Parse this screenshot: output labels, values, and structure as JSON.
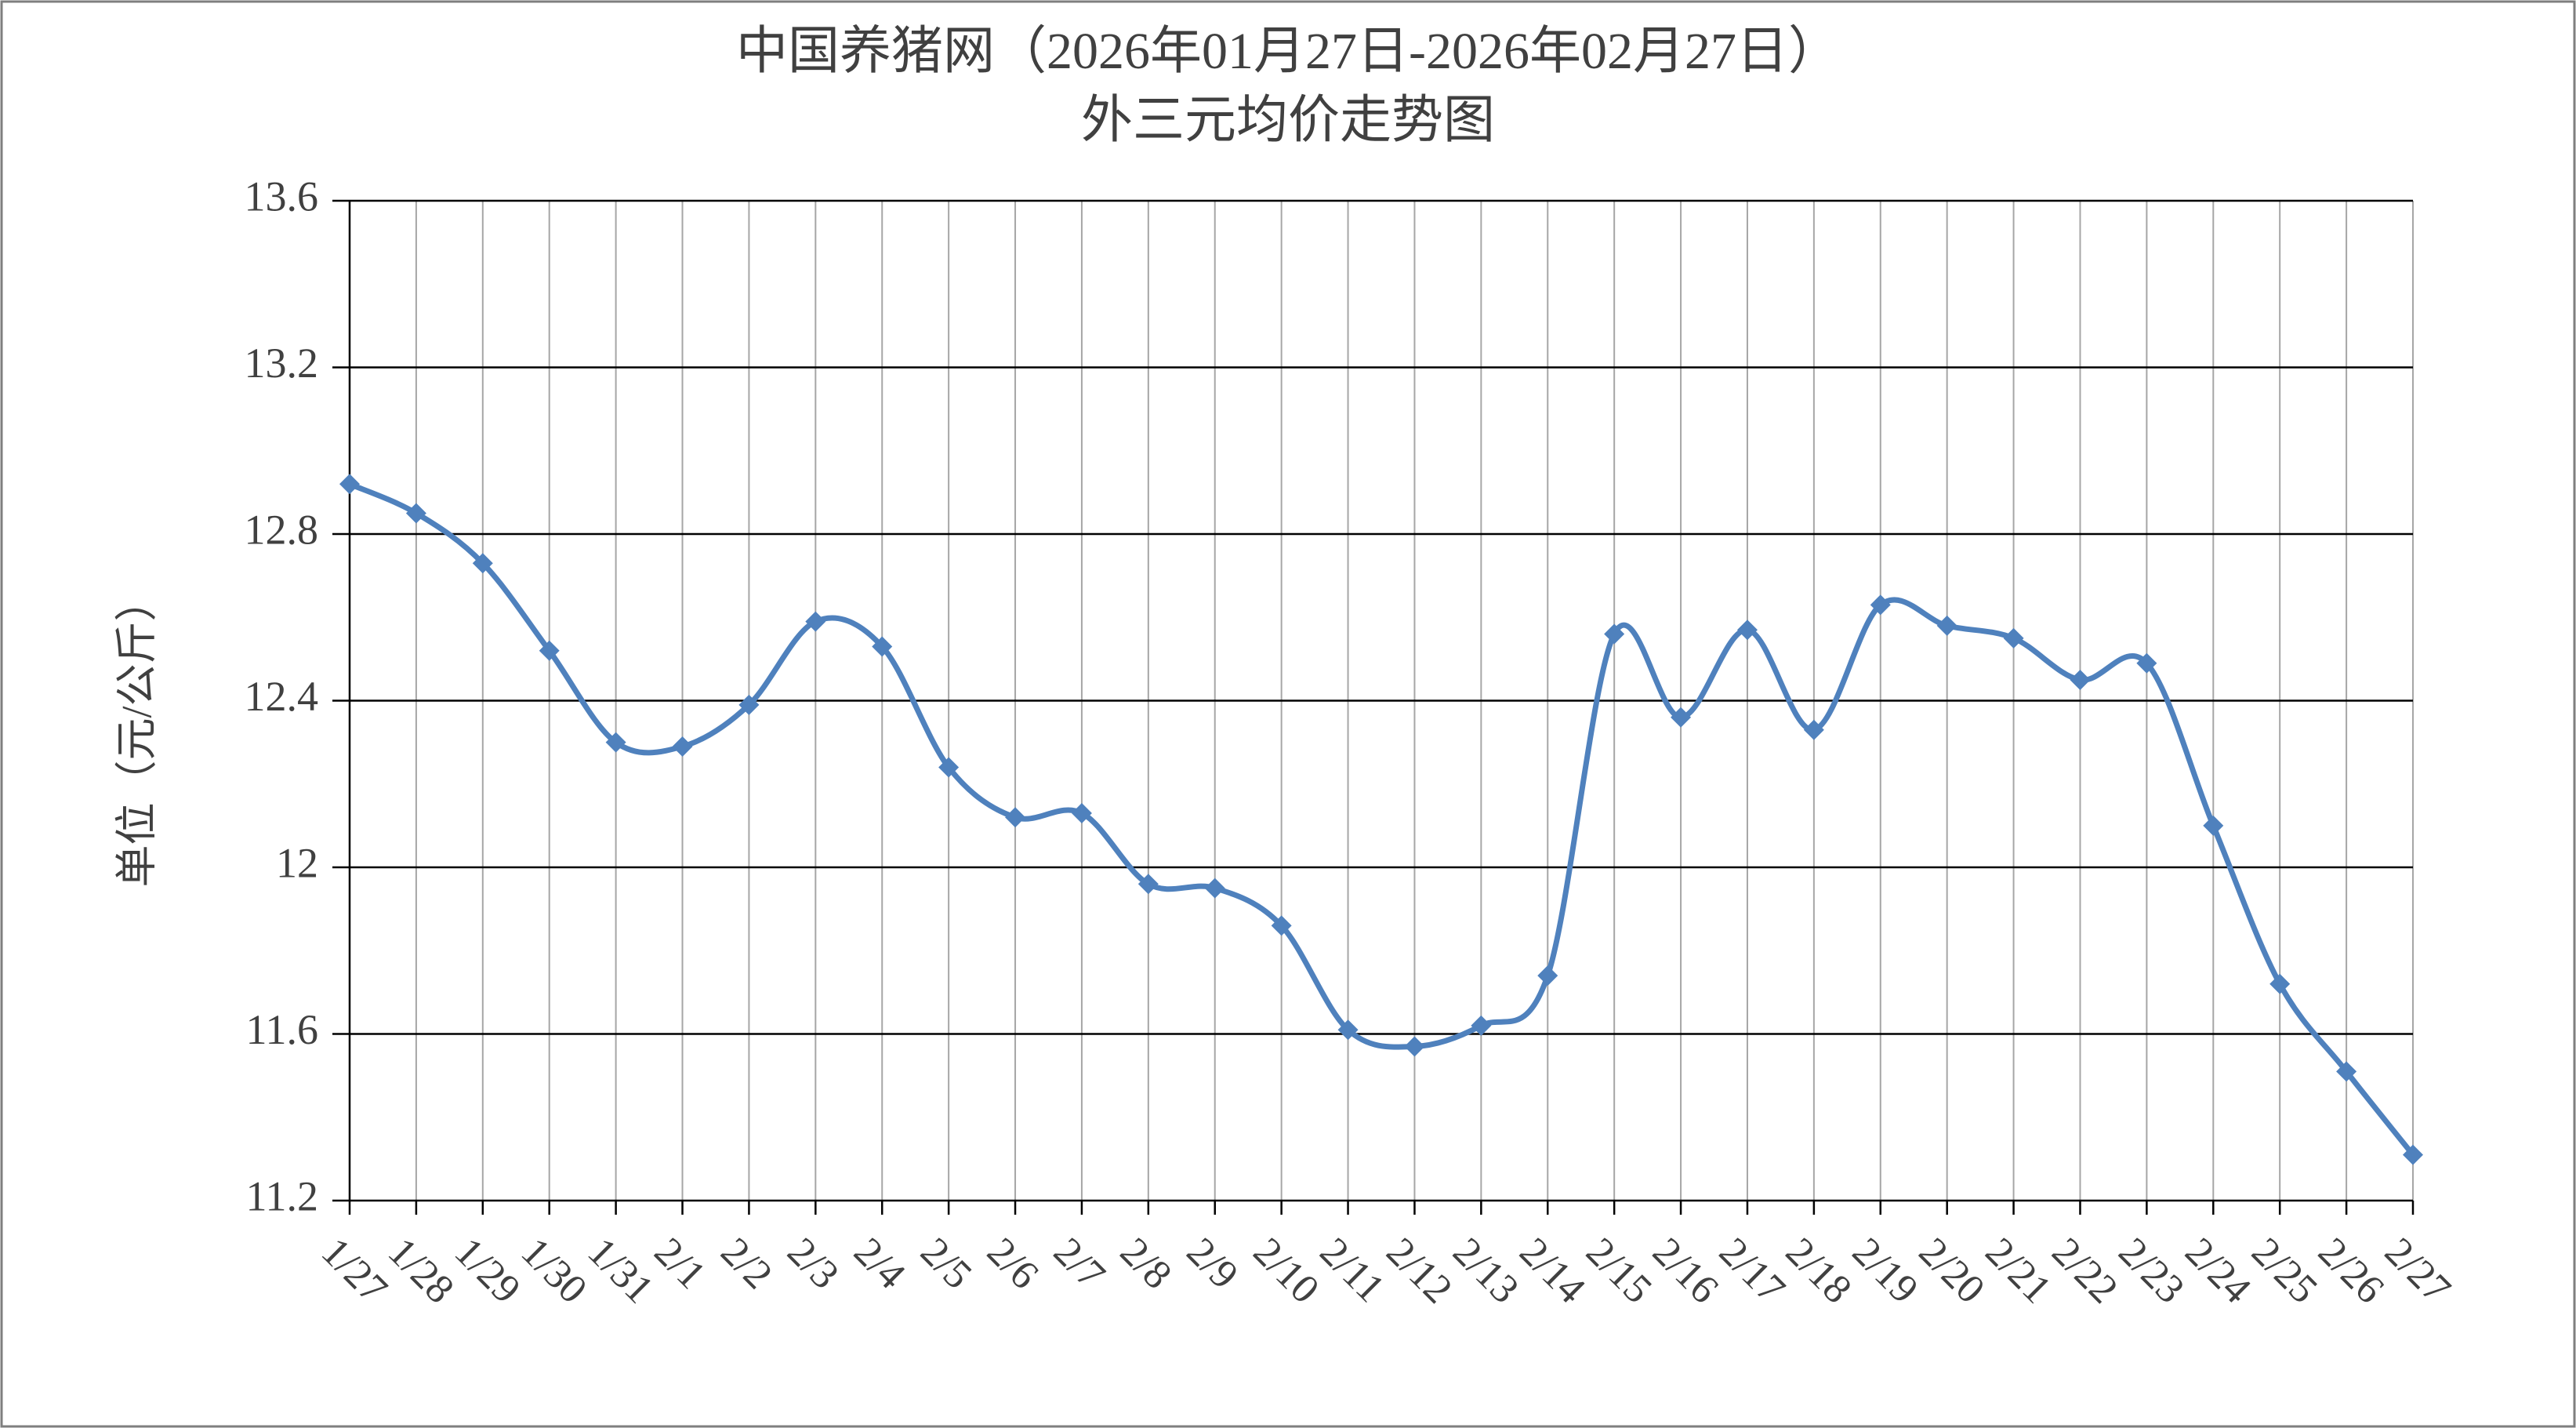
{
  "chart_data": {
    "type": "line",
    "title": "中国养猪网（2026年01月27日-2026年02月27日）",
    "subtitle": "外三元均价走势图",
    "y_label": "单位（元/公斤）",
    "categories": [
      "1/27",
      "1/28",
      "1/29",
      "1/30",
      "1/31",
      "2/1",
      "2/2",
      "2/3",
      "2/4",
      "2/5",
      "2/6",
      "2/7",
      "2/8",
      "2/9",
      "2/10",
      "2/11",
      "2/12",
      "2/13",
      "2/14",
      "2/15",
      "2/16",
      "2/17",
      "2/18",
      "2/19",
      "2/20",
      "2/21",
      "2/22",
      "2/23",
      "2/24",
      "2/25",
      "2/26",
      "2/27"
    ],
    "series": [
      {
        "name": "外三元均价",
        "color": "#4f81bd",
        "values": [
          12.92,
          12.85,
          12.73,
          12.52,
          12.3,
          12.29,
          12.39,
          12.59,
          12.53,
          12.24,
          12.12,
          12.13,
          11.96,
          11.95,
          11.86,
          11.61,
          11.57,
          11.62,
          11.74,
          12.56,
          12.36,
          12.57,
          12.33,
          12.63,
          12.58,
          12.55,
          12.45,
          12.49,
          12.1,
          11.72,
          11.51,
          11.31
        ]
      }
    ],
    "ylim": [
      11.2,
      13.6
    ],
    "yticks": [
      11.2,
      11.6,
      12,
      12.4,
      12.8,
      13.2,
      13.6
    ],
    "grid": true,
    "smooth": true
  }
}
